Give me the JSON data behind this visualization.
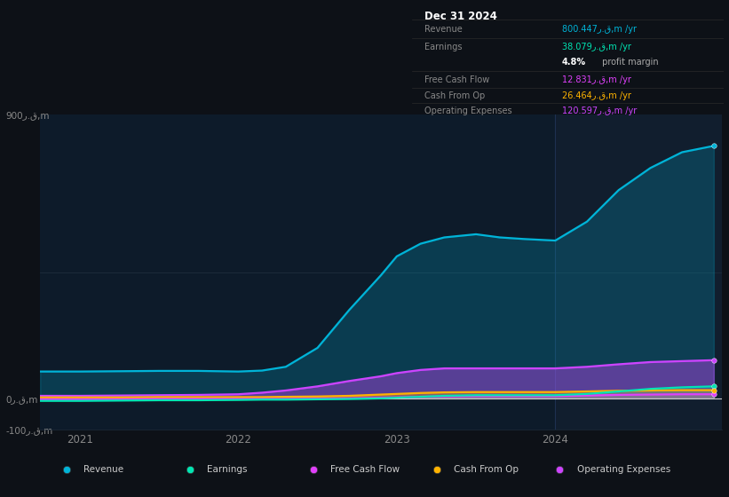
{
  "background_color": "#0d1117",
  "plot_bg_color": "#0d1b2a",
  "forecast_bg_color": "#111e2e",
  "title_box": {
    "date": "Dec 31 2024",
    "rows": [
      {
        "label": "Revenue",
        "value": "800.447ر.ق,m /yr",
        "color": "#00b4d8"
      },
      {
        "label": "Earnings",
        "value": "38.079ر.ق,m /yr",
        "color": "#00e5b3"
      },
      {
        "label": "",
        "value": "4.8% profit margin",
        "color": "#ffffff"
      },
      {
        "label": "Free Cash Flow",
        "value": "12.831ر.ق,m /yr",
        "color": "#e040fb"
      },
      {
        "label": "Cash From Op",
        "value": "26.464ر.ق,m /yr",
        "color": "#ffb300"
      },
      {
        "label": "Operating Expenses",
        "value": "120.597ر.ق,m /yr",
        "color": "#cc44ff"
      }
    ]
  },
  "ylim": [
    -100,
    900
  ],
  "ytick_positions": [
    -100,
    0,
    900
  ],
  "ytick_labels": [
    "-100ر.ق,m",
    "0ر.ق,m",
    "900ر.ق,m"
  ],
  "xtick_positions": [
    2021,
    2022,
    2023,
    2024
  ],
  "xtick_labels": [
    "2021",
    "2022",
    "2023",
    "2024"
  ],
  "x": [
    2020.75,
    2021.0,
    2021.25,
    2021.5,
    2021.75,
    2022.0,
    2022.15,
    2022.3,
    2022.5,
    2022.7,
    2022.9,
    2023.0,
    2023.15,
    2023.3,
    2023.5,
    2023.65,
    2023.8,
    2024.0,
    2024.2,
    2024.4,
    2024.6,
    2024.8,
    2025.0
  ],
  "revenue": [
    85,
    85,
    86,
    87,
    87,
    85,
    88,
    100,
    160,
    280,
    390,
    450,
    490,
    510,
    520,
    510,
    505,
    500,
    560,
    660,
    730,
    780,
    800
  ],
  "earnings": [
    -8,
    -8,
    -7,
    -6,
    -6,
    -5,
    -4,
    -4,
    -3,
    -2,
    0,
    2,
    5,
    8,
    10,
    10,
    10,
    10,
    14,
    22,
    30,
    35,
    38
  ],
  "fcf": [
    -3,
    -3,
    -3,
    -2,
    -2,
    -2,
    -2,
    -2,
    -1,
    0,
    2,
    3,
    5,
    6,
    7,
    7,
    7,
    7,
    9,
    11,
    12,
    13,
    13
  ],
  "cashfromop": [
    3,
    3,
    3,
    4,
    4,
    4,
    4,
    5,
    6,
    8,
    12,
    14,
    17,
    19,
    20,
    20,
    20,
    20,
    22,
    24,
    25,
    26,
    26
  ],
  "opex": [
    8,
    8,
    9,
    10,
    11,
    13,
    18,
    25,
    38,
    55,
    70,
    80,
    90,
    95,
    95,
    95,
    95,
    95,
    100,
    108,
    115,
    118,
    121
  ],
  "forecast_x_start": 2024.0,
  "xlim_start": 2020.75,
  "xlim_end": 2025.05,
  "colors": {
    "revenue": "#00b4d8",
    "earnings": "#00e5b3",
    "fcf": "#e040fb",
    "cashfromop": "#ffb300",
    "opex": "#cc44ff"
  },
  "legend_items": [
    {
      "label": "Revenue",
      "color": "#00b4d8"
    },
    {
      "label": "Earnings",
      "color": "#00e5b3"
    },
    {
      "label": "Free Cash Flow",
      "color": "#e040fb"
    },
    {
      "label": "Cash From Op",
      "color": "#ffb300"
    },
    {
      "label": "Operating Expenses",
      "color": "#cc44ff"
    }
  ]
}
